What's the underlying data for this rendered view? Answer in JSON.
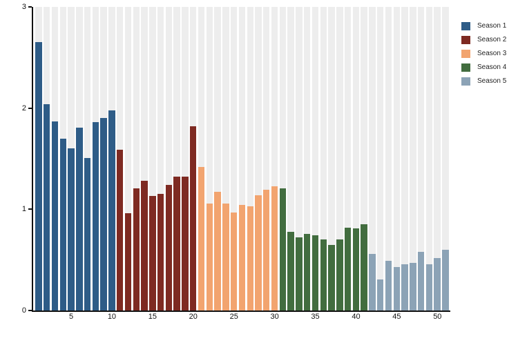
{
  "chart_data": {
    "type": "bar",
    "title": "",
    "xlabel": "",
    "ylabel": "",
    "ylim": [
      0,
      3
    ],
    "yticks": [
      {
        "value": 0,
        "label": "0"
      },
      {
        "value": 1,
        "label": "1"
      },
      {
        "value": 2,
        "label": "2"
      },
      {
        "value": 3,
        "label": "3"
      }
    ],
    "xticks": [
      {
        "episode": 5,
        "label": "5"
      },
      {
        "episode": 10,
        "label": "10"
      },
      {
        "episode": 15,
        "label": "15"
      },
      {
        "episode": 20,
        "label": "20"
      },
      {
        "episode": 25,
        "label": "25"
      },
      {
        "episode": 30,
        "label": "30"
      },
      {
        "episode": 35,
        "label": "35"
      },
      {
        "episode": 40,
        "label": "40"
      },
      {
        "episode": 45,
        "label": "45"
      },
      {
        "episode": 50,
        "label": "50"
      }
    ],
    "x_range": [
      1,
      51
    ],
    "grid": "vertical-stripes",
    "legend_position": "top-right",
    "series": [
      {
        "name": "Season 1",
        "color": "#2E5C87",
        "values": [
          2.65,
          2.04,
          1.87,
          1.7,
          1.6,
          1.81,
          1.51,
          1.86,
          1.9,
          1.98
        ]
      },
      {
        "name": "Season 2",
        "color": "#7E2A22",
        "values": [
          1.59,
          0.96,
          1.21,
          1.28,
          1.13,
          1.15,
          1.24,
          1.32,
          1.32,
          1.82
        ]
      },
      {
        "name": "Season 3",
        "color": "#F2A46F",
        "values": [
          1.42,
          1.06,
          1.17,
          1.06,
          0.97,
          1.04,
          1.03,
          1.14,
          1.19,
          1.23
        ]
      },
      {
        "name": "Season 4",
        "color": "#426D3F",
        "values": [
          1.21,
          0.78,
          0.72,
          0.76,
          0.74,
          0.7,
          0.65,
          0.7,
          0.82,
          0.81,
          0.85
        ]
      },
      {
        "name": "Season 5",
        "color": "#8CA3B6",
        "values": [
          0.56,
          0.31,
          0.49,
          0.43,
          0.46,
          0.47,
          0.58,
          0.46,
          0.52,
          0.6
        ]
      }
    ]
  },
  "legend": {
    "items": [
      {
        "label": "Season 1",
        "color": "#2E5C87"
      },
      {
        "label": "Season 2",
        "color": "#7E2A22"
      },
      {
        "label": "Season 3",
        "color": "#F2A46F"
      },
      {
        "label": "Season 4",
        "color": "#426D3F"
      },
      {
        "label": "Season 5",
        "color": "#8CA3B6"
      }
    ]
  },
  "colors": {
    "background": "#FFFFFF",
    "stripe": "#EDEDED",
    "axis": "#111111",
    "tick_text": "#111111",
    "legend_text": "#222222"
  }
}
